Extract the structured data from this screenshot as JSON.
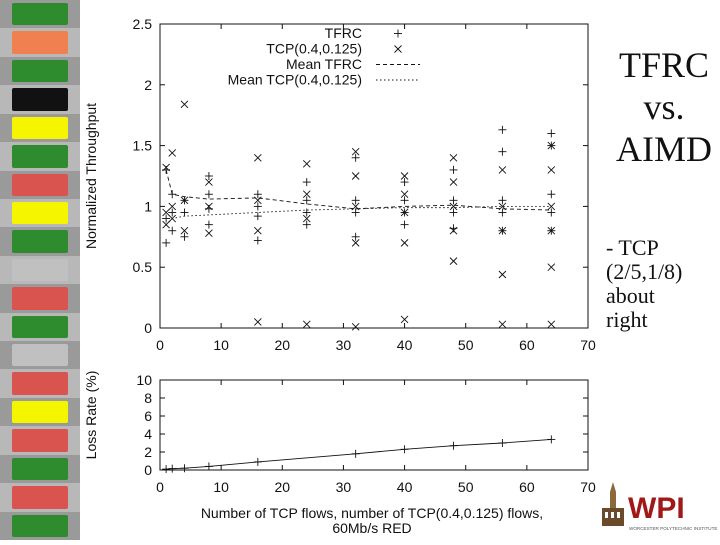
{
  "slide": {
    "title_lines": [
      "TFRC",
      "vs.",
      "AIMD"
    ],
    "note_lines": [
      "- TCP",
      "(2/5,1/8)",
      "about",
      "right"
    ],
    "logo": {
      "text": "WPI",
      "subtitle": "WORCESTER POLYTECHNIC INSTITUTE",
      "icon": "building-tower-icon"
    }
  },
  "decoration": {
    "stripe_colors": [
      "#2e8b2e",
      "#f08050",
      "#2e8b2e",
      "#111111",
      "#f5f500",
      "#2e8b2e",
      "#d9534f",
      "#f5f500",
      "#2e8b2e",
      "#c0c0c0",
      "#d9534f",
      "#2e8b2e",
      "#c0c0c0",
      "#d9534f",
      "#f5f500",
      "#d9534f",
      "#2e8b2e",
      "#d9534f",
      "#2e8b2e"
    ]
  },
  "chart_data": [
    {
      "type": "scatter",
      "ylabel": "Normalized Throughput",
      "xlim": [
        0,
        70
      ],
      "ylim": [
        0,
        2.5
      ],
      "xticks": [
        "0",
        "10",
        "20",
        "30",
        "40",
        "50",
        "60",
        "70"
      ],
      "yticks": [
        "0",
        "0.5",
        "1",
        "1.5",
        "2",
        "2.5"
      ],
      "legend": {
        "placement": "top-right",
        "entries": [
          {
            "label": "TFRC",
            "marker": "+"
          },
          {
            "label": "TCP(0.4,0.125)",
            "marker": "x"
          },
          {
            "label": "Mean TFRC",
            "marker": "dashed"
          },
          {
            "label": "Mean TCP(0.4,0.125)",
            "marker": "dotted"
          }
        ]
      },
      "groups": [
        1,
        2,
        4,
        8,
        16,
        24,
        32,
        40,
        48,
        56,
        64
      ],
      "series": [
        {
          "name": "TFRC",
          "marker": "+",
          "points": [
            [
              1,
              0.7
            ],
            [
              1,
              0.9
            ],
            [
              1,
              1.3
            ],
            [
              2,
              0.8
            ],
            [
              2,
              0.95
            ],
            [
              2,
              1.1
            ],
            [
              4,
              0.75
            ],
            [
              4,
              0.95
            ],
            [
              4,
              1.05
            ],
            [
              8,
              0.85
            ],
            [
              8,
              0.98
            ],
            [
              8,
              1.1
            ],
            [
              8,
              1.25
            ],
            [
              16,
              0.72
            ],
            [
              16,
              0.92
            ],
            [
              16,
              1.0
            ],
            [
              16,
              1.1
            ],
            [
              24,
              0.85
            ],
            [
              24,
              0.95
            ],
            [
              24,
              1.05
            ],
            [
              24,
              1.2
            ],
            [
              32,
              0.75
            ],
            [
              32,
              0.95
            ],
            [
              32,
              1.05
            ],
            [
              32,
              1.4
            ],
            [
              40,
              0.85
            ],
            [
              40,
              0.95
            ],
            [
              40,
              1.05
            ],
            [
              40,
              1.2
            ],
            [
              48,
              0.82
            ],
            [
              48,
              0.95
            ],
            [
              48,
              1.05
            ],
            [
              48,
              1.3
            ],
            [
              56,
              0.8
            ],
            [
              56,
              0.95
            ],
            [
              56,
              1.05
            ],
            [
              56,
              1.45
            ],
            [
              56,
              1.63
            ],
            [
              64,
              0.8
            ],
            [
              64,
              0.95
            ],
            [
              64,
              1.1
            ],
            [
              64,
              1.5
            ],
            [
              64,
              1.6
            ]
          ]
        },
        {
          "name": "TCP(0.4,0.125)",
          "marker": "x",
          "points": [
            [
              1,
              1.32
            ],
            [
              1,
              0.85
            ],
            [
              1,
              0.95
            ],
            [
              2,
              1.44
            ],
            [
              2,
              0.9
            ],
            [
              2,
              1.0
            ],
            [
              4,
              1.84
            ],
            [
              4,
              0.8
            ],
            [
              4,
              1.05
            ],
            [
              8,
              0.78
            ],
            [
              8,
              1.0
            ],
            [
              8,
              1.2
            ],
            [
              16,
              0.05
            ],
            [
              16,
              0.8
            ],
            [
              16,
              1.05
            ],
            [
              16,
              1.4
            ],
            [
              24,
              0.03
            ],
            [
              24,
              0.9
            ],
            [
              24,
              1.1
            ],
            [
              24,
              1.35
            ],
            [
              32,
              0.01
            ],
            [
              32,
              0.7
            ],
            [
              32,
              1.0
            ],
            [
              32,
              1.25
            ],
            [
              32,
              1.45
            ],
            [
              40,
              0.07
            ],
            [
              40,
              0.7
            ],
            [
              40,
              0.95
            ],
            [
              40,
              1.1
            ],
            [
              40,
              1.25
            ],
            [
              48,
              0.55
            ],
            [
              48,
              0.8
            ],
            [
              48,
              1.0
            ],
            [
              48,
              1.2
            ],
            [
              48,
              1.4
            ],
            [
              56,
              0.03
            ],
            [
              56,
              0.44
            ],
            [
              56,
              0.8
            ],
            [
              56,
              1.0
            ],
            [
              56,
              1.3
            ],
            [
              64,
              0.03
            ],
            [
              64,
              0.5
            ],
            [
              64,
              0.8
            ],
            [
              64,
              1.0
            ],
            [
              64,
              1.3
            ],
            [
              64,
              1.5
            ]
          ]
        },
        {
          "name": "Mean TFRC",
          "style": "dashed",
          "points": [
            [
              1,
              1.3
            ],
            [
              2,
              1.1
            ],
            [
              4,
              1.08
            ],
            [
              8,
              1.06
            ],
            [
              16,
              1.07
            ],
            [
              24,
              1.02
            ],
            [
              32,
              0.98
            ],
            [
              40,
              1.0
            ],
            [
              48,
              1.01
            ],
            [
              56,
              0.98
            ],
            [
              64,
              0.97
            ]
          ]
        },
        {
          "name": "Mean TCP(0.4,0.125)",
          "style": "dotted",
          "points": [
            [
              1,
              0.85
            ],
            [
              2,
              0.9
            ],
            [
              4,
              0.92
            ],
            [
              8,
              0.93
            ],
            [
              16,
              0.95
            ],
            [
              24,
              0.97
            ],
            [
              32,
              0.98
            ],
            [
              40,
              0.99
            ],
            [
              48,
              0.99
            ],
            [
              56,
              1.0
            ],
            [
              64,
              1.0
            ]
          ]
        }
      ]
    },
    {
      "type": "line",
      "ylabel": "Loss Rate (%)",
      "xlabel": "Number of TCP flows, number of TCP(0.4,0.125) flows,",
      "xlabel2": "60Mb/s RED",
      "xlim": [
        0,
        70
      ],
      "ylim": [
        0,
        10
      ],
      "xticks": [
        "0",
        "10",
        "20",
        "30",
        "40",
        "50",
        "60",
        "70"
      ],
      "yticks": [
        "0",
        "2",
        "4",
        "6",
        "8",
        "10"
      ],
      "series": [
        {
          "name": "",
          "marker": "+",
          "points": [
            [
              1,
              0.1
            ],
            [
              2,
              0.15
            ],
            [
              4,
              0.2
            ],
            [
              8,
              0.4
            ],
            [
              16,
              0.9
            ],
            [
              32,
              1.8
            ],
            [
              40,
              2.3
            ],
            [
              48,
              2.7
            ],
            [
              56,
              3.0
            ],
            [
              64,
              3.4
            ]
          ]
        }
      ]
    }
  ]
}
